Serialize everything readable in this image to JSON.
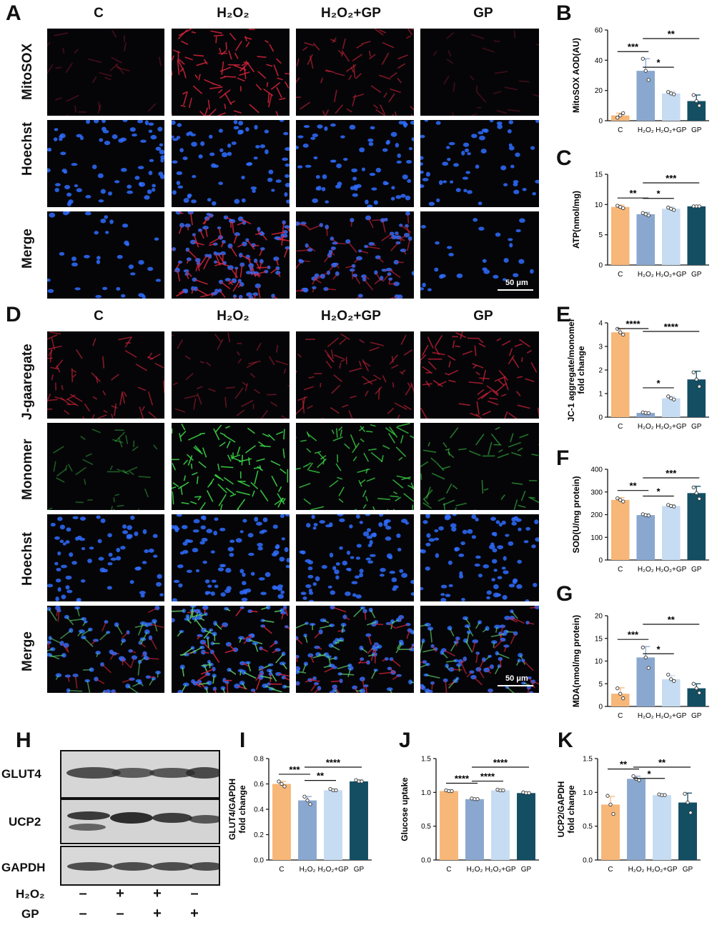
{
  "panels": {
    "A": "A",
    "B": "B",
    "C": "C",
    "D": "D",
    "E": "E",
    "F": "F",
    "G": "G",
    "H": "H",
    "I": "I",
    "J": "J",
    "K": "K"
  },
  "micrographs_a": {
    "columns": [
      "C",
      "H₂O₂",
      "H₂O₂+GP",
      "GP"
    ],
    "rows": [
      "MitoSOX",
      "Hoechst",
      "Merge"
    ],
    "scale_bar": "50 μm"
  },
  "micrographs_d": {
    "columns": [
      "C",
      "H₂O₂",
      "H₂O₂+GP",
      "GP"
    ],
    "rows": [
      "J-gaaregate",
      "Monomer",
      "Hoechst",
      "Merge"
    ],
    "scale_bar": "50 μm"
  },
  "western_blot": {
    "bands": [
      "GLUT4",
      "UCP2",
      "GAPDH"
    ],
    "conditions": [
      {
        "label": "H₂O₂",
        "signs": [
          "–",
          "+",
          "+",
          "–"
        ]
      },
      {
        "label": "GP",
        "signs": [
          "–",
          "–",
          "+",
          "+"
        ]
      }
    ]
  },
  "colors": {
    "C": "#f7b778",
    "H2O2": "#8aa8cf",
    "H2O2+GP": "#c6dcf2",
    "GP": "#134e63"
  },
  "chart_data": [
    {
      "id": "B",
      "type": "bar",
      "categories": [
        "C",
        "H₂O₂",
        "H₂O₂+GP",
        "GP"
      ],
      "values": [
        3.5,
        33,
        18,
        13
      ],
      "errors": [
        1.5,
        8,
        1.5,
        4
      ],
      "points": [
        [
          2,
          3.5,
          5
        ],
        [
          41,
          33,
          27
        ],
        [
          19,
          18,
          17.5
        ],
        [
          17,
          13,
          10
        ]
      ],
      "ylabel": "MitoSOX AOD(AU)",
      "ylim": [
        0,
        60
      ],
      "yticks": [
        0,
        20,
        40,
        60
      ],
      "sig": [
        {
          "from": 0,
          "to": 1,
          "label": "***"
        },
        {
          "from": 1,
          "to": 2,
          "label": "*"
        },
        {
          "from": 1,
          "to": 3,
          "label": "**"
        }
      ]
    },
    {
      "id": "C",
      "type": "bar",
      "categories": [
        "C",
        "H₂O₂",
        "H₂O₂+GP",
        "GP"
      ],
      "values": [
        9.6,
        8.4,
        9.3,
        9.7
      ],
      "errors": [
        0.3,
        0.3,
        0.3,
        0.1
      ],
      "points": [
        [
          9.8,
          9.6,
          9.4
        ],
        [
          8.6,
          8.4,
          8.2
        ],
        [
          9.5,
          9.3,
          9.1
        ],
        [
          9.7,
          9.7,
          9.7
        ]
      ],
      "ylabel": "ATP(nmol/mg)",
      "ylim": [
        0,
        15
      ],
      "yticks": [
        0,
        5,
        10,
        15
      ],
      "sig": [
        {
          "from": 0,
          "to": 1,
          "label": "**"
        },
        {
          "from": 1,
          "to": 2,
          "label": "*"
        },
        {
          "from": 1,
          "to": 3,
          "label": "***"
        }
      ]
    },
    {
      "id": "E",
      "type": "bar",
      "categories": [
        "C",
        "H₂O₂",
        "H₂O₂+GP",
        "GP"
      ],
      "values": [
        3.6,
        0.18,
        0.8,
        1.6
      ],
      "errors": [
        0.15,
        0.03,
        0.08,
        0.35
      ],
      "points": [
        [
          3.75,
          3.6,
          3.5
        ],
        [
          0.2,
          0.18,
          0.17
        ],
        [
          0.88,
          0.8,
          0.75
        ],
        [
          1.9,
          1.6,
          1.3
        ]
      ],
      "ylabel": "JC-1 aggregate/monomer fold change",
      "ylim": [
        0,
        4
      ],
      "yticks": [
        0,
        1,
        2,
        3,
        4
      ],
      "sig": [
        {
          "from": 0,
          "to": 1,
          "label": "****"
        },
        {
          "from": 1,
          "to": 2,
          "label": "*"
        },
        {
          "from": 1,
          "to": 3,
          "label": "****"
        }
      ]
    },
    {
      "id": "F",
      "type": "bar",
      "categories": [
        "C",
        "H₂O₂",
        "H₂O₂+GP",
        "GP"
      ],
      "values": [
        265,
        198,
        238,
        295
      ],
      "errors": [
        10,
        5,
        6,
        30
      ],
      "points": [
        [
          272,
          265,
          258
        ],
        [
          202,
          198,
          196
        ],
        [
          243,
          238,
          236
        ],
        [
          320,
          295,
          270
        ]
      ],
      "ylabel": "SOD(U/mg protein)",
      "ylim": [
        0,
        400
      ],
      "yticks": [
        0,
        100,
        200,
        300,
        400
      ],
      "sig": [
        {
          "from": 0,
          "to": 1,
          "label": "**"
        },
        {
          "from": 1,
          "to": 2,
          "label": "*"
        },
        {
          "from": 1,
          "to": 3,
          "label": "***"
        }
      ]
    },
    {
      "id": "G",
      "type": "bar",
      "categories": [
        "C",
        "H₂O₂",
        "H₂O₂+GP",
        "GP"
      ],
      "values": [
        2.8,
        10.8,
        6,
        4
      ],
      "errors": [
        1.3,
        2.4,
        0.8,
        1
      ],
      "points": [
        [
          4,
          2.8,
          1.8
        ],
        [
          13,
          10.8,
          8.5
        ],
        [
          7,
          6,
          5.6
        ],
        [
          5,
          4,
          3
        ]
      ],
      "ylabel": "MDA(nmol/mg protein)",
      "ylim": [
        0,
        20
      ],
      "yticks": [
        0,
        5,
        10,
        15,
        20
      ],
      "sig": [
        {
          "from": 0,
          "to": 1,
          "label": "***"
        },
        {
          "from": 1,
          "to": 2,
          "label": "*"
        },
        {
          "from": 1,
          "to": 3,
          "label": "**"
        }
      ]
    },
    {
      "id": "I",
      "type": "bar",
      "categories": [
        "C",
        "H₂O₂",
        "H₂O₂+GP",
        "GP"
      ],
      "values": [
        0.6,
        0.47,
        0.55,
        0.62
      ],
      "errors": [
        0.02,
        0.03,
        0.01,
        0.01
      ],
      "points": [
        [
          0.62,
          0.6,
          0.58
        ],
        [
          0.5,
          0.47,
          0.44
        ],
        [
          0.56,
          0.55,
          0.55
        ],
        [
          0.63,
          0.62,
          0.62
        ]
      ],
      "ylabel": "GLUT4/GAPDH fold change",
      "ylim": [
        0,
        0.8
      ],
      "yticks": [
        0,
        0.2,
        0.4,
        0.6,
        0.8
      ],
      "ytick_labels": [
        "0.0",
        "0.2",
        "0.4",
        "0.6",
        "0.8"
      ],
      "sig": [
        {
          "from": 0,
          "to": 1,
          "label": "***"
        },
        {
          "from": 1,
          "to": 2,
          "label": "**"
        },
        {
          "from": 1,
          "to": 3,
          "label": "****"
        }
      ]
    },
    {
      "id": "J",
      "type": "bar",
      "categories": [
        "C",
        "H₂O₂",
        "H₂O₂+GP",
        "GP"
      ],
      "values": [
        1.02,
        0.9,
        1.03,
        0.99
      ],
      "errors": [
        0.01,
        0.01,
        0.01,
        0.01
      ],
      "points": [
        [
          1.03,
          1.02,
          1.02
        ],
        [
          0.91,
          0.9,
          0.9
        ],
        [
          1.04,
          1.03,
          1.03
        ],
        [
          1.0,
          0.99,
          0.99
        ]
      ],
      "ylabel": "Glucose uptake",
      "ylim": [
        0,
        1.5
      ],
      "yticks": [
        0,
        0.5,
        1,
        1.5
      ],
      "ytick_labels": [
        "0.0",
        "0.5",
        "1.0",
        "1.5"
      ],
      "sig": [
        {
          "from": 0,
          "to": 1,
          "label": "****"
        },
        {
          "from": 1,
          "to": 2,
          "label": "****"
        },
        {
          "from": 1,
          "to": 3,
          "label": "****"
        }
      ]
    },
    {
      "id": "K",
      "type": "bar",
      "categories": [
        "C",
        "H₂O₂",
        "H₂O₂+GP",
        "GP"
      ],
      "values": [
        0.82,
        1.2,
        0.96,
        0.85
      ],
      "errors": [
        0.12,
        0.04,
        0.02,
        0.14
      ],
      "points": [
        [
          0.95,
          0.82,
          0.68
        ],
        [
          1.24,
          1.2,
          1.18
        ],
        [
          0.97,
          0.96,
          0.96
        ],
        [
          0.98,
          0.85,
          0.7
        ]
      ],
      "ylabel": "UCP2/GAPDH fold change",
      "ylim": [
        0,
        1.5
      ],
      "yticks": [
        0,
        0.5,
        1,
        1.5
      ],
      "ytick_labels": [
        "0.0",
        "0.5",
        "1.0",
        "1.5"
      ],
      "sig": [
        {
          "from": 0,
          "to": 1,
          "label": "**"
        },
        {
          "from": 1,
          "to": 2,
          "label": "*"
        },
        {
          "from": 1,
          "to": 3,
          "label": "**"
        }
      ]
    }
  ]
}
